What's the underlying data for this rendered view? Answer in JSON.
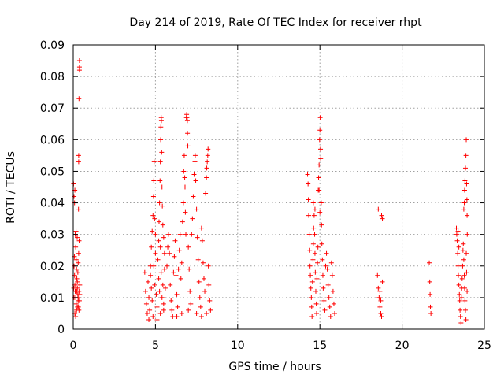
{
  "chart_data": {
    "type": "scatter",
    "title": "Day 214 of 2019, Rate Of TEC Index for receiver rhpt",
    "xlabel": "GPS time / hours",
    "ylabel": "ROTI / TECUs",
    "xlim": [
      0,
      25
    ],
    "ylim": [
      0,
      0.09
    ],
    "grid": true,
    "marker": "+",
    "marker_color": "#ff0000",
    "x_ticks": [
      0,
      5,
      10,
      15,
      20,
      25
    ],
    "x_tick_labels": [
      "0",
      "5",
      "10",
      "15",
      "20",
      "25"
    ],
    "y_ticks": [
      0,
      0.01,
      0.02,
      0.03,
      0.04,
      0.05,
      0.06,
      0.07,
      0.08,
      0.09
    ],
    "y_tick_labels": [
      "0",
      "0.01",
      "0.02",
      "0.03",
      "0.04",
      "0.05",
      "0.06",
      "0.07",
      "0.08",
      "0.09"
    ],
    "series": [
      {
        "name": "ROTI",
        "points": [
          [
            0.02,
            0.046
          ],
          [
            0.05,
            0.042
          ],
          [
            0.08,
            0.04
          ],
          [
            0.1,
            0.044
          ],
          [
            0.12,
            0.03
          ],
          [
            0.15,
            0.026
          ],
          [
            0.18,
            0.022
          ],
          [
            0.2,
            0.019
          ],
          [
            0.22,
            0.016
          ],
          [
            0.25,
            0.013
          ],
          [
            0.28,
            0.011
          ],
          [
            0.3,
            0.009
          ],
          [
            0.32,
            0.007
          ],
          [
            0.35,
            0.006
          ],
          [
            0.05,
            0.02
          ],
          [
            0.08,
            0.017
          ],
          [
            0.1,
            0.014
          ],
          [
            0.12,
            0.012
          ],
          [
            0.15,
            0.01
          ],
          [
            0.18,
            0.008
          ],
          [
            0.22,
            0.012
          ],
          [
            0.25,
            0.015
          ],
          [
            0.28,
            0.018
          ],
          [
            0.3,
            0.021
          ],
          [
            0.33,
            0.024
          ],
          [
            0.36,
            0.028
          ],
          [
            0.38,
            0.082
          ],
          [
            0.38,
            0.085
          ],
          [
            0.38,
            0.083
          ],
          [
            0.35,
            0.073
          ],
          [
            0.33,
            0.055
          ],
          [
            0.33,
            0.053
          ],
          [
            0.32,
            0.038
          ],
          [
            0.1,
            0.005
          ],
          [
            0.15,
            0.004
          ],
          [
            0.2,
            0.006
          ],
          [
            0.25,
            0.007
          ],
          [
            0.3,
            0.01
          ],
          [
            0.35,
            0.012
          ],
          [
            0.38,
            0.009
          ],
          [
            0.4,
            0.014
          ],
          [
            0.4,
            0.011
          ],
          [
            0.05,
            0.01
          ],
          [
            0.03,
            0.013
          ],
          [
            0.07,
            0.023
          ],
          [
            0.17,
            0.031
          ],
          [
            0.24,
            0.029
          ],
          [
            4.35,
            0.018
          ],
          [
            4.4,
            0.012
          ],
          [
            4.45,
            0.008
          ],
          [
            4.5,
            0.005
          ],
          [
            4.55,
            0.015
          ],
          [
            4.6,
            0.01
          ],
          [
            4.65,
            0.006
          ],
          [
            4.7,
            0.017
          ],
          [
            4.75,
            0.013
          ],
          [
            4.8,
            0.009
          ],
          [
            4.85,
            0.004
          ],
          [
            4.9,
            0.02
          ],
          [
            4.95,
            0.014
          ],
          [
            5.0,
            0.024
          ],
          [
            5.05,
            0.011
          ],
          [
            5.1,
            0.007
          ],
          [
            5.15,
            0.022
          ],
          [
            5.2,
            0.016
          ],
          [
            5.25,
            0.012
          ],
          [
            5.3,
            0.026
          ],
          [
            5.35,
            0.018
          ],
          [
            5.4,
            0.01
          ],
          [
            5.45,
            0.014
          ],
          [
            5.5,
            0.008
          ],
          [
            5.55,
            0.019
          ],
          [
            5.6,
            0.013
          ],
          [
            4.7,
            0.02
          ],
          [
            4.75,
            0.026
          ],
          [
            4.8,
            0.031
          ],
          [
            4.85,
            0.036
          ],
          [
            4.88,
            0.042
          ],
          [
            4.9,
            0.047
          ],
          [
            4.92,
            0.053
          ],
          [
            4.95,
            0.035
          ],
          [
            5.0,
            0.03
          ],
          [
            5.2,
            0.028
          ],
          [
            5.22,
            0.034
          ],
          [
            5.25,
            0.04
          ],
          [
            5.28,
            0.047
          ],
          [
            5.3,
            0.053
          ],
          [
            5.32,
            0.06
          ],
          [
            5.33,
            0.064
          ],
          [
            5.35,
            0.067
          ],
          [
            5.36,
            0.066
          ],
          [
            5.38,
            0.056
          ],
          [
            5.4,
            0.045
          ],
          [
            5.42,
            0.039
          ],
          [
            5.45,
            0.033
          ],
          [
            5.5,
            0.029
          ],
          [
            5.55,
            0.024
          ],
          [
            5.1,
            0.003
          ],
          [
            5.3,
            0.005
          ],
          [
            5.5,
            0.006
          ],
          [
            4.6,
            0.003
          ],
          [
            5.7,
            0.02
          ],
          [
            5.75,
            0.026
          ],
          [
            5.8,
            0.03
          ],
          [
            5.85,
            0.024
          ],
          [
            5.9,
            0.014
          ],
          [
            5.95,
            0.009
          ],
          [
            6.0,
            0.006
          ],
          [
            6.05,
            0.004
          ],
          [
            6.1,
            0.018
          ],
          [
            6.15,
            0.023
          ],
          [
            6.2,
            0.028
          ],
          [
            6.25,
            0.017
          ],
          [
            6.3,
            0.011
          ],
          [
            6.35,
            0.007
          ],
          [
            6.4,
            0.019
          ],
          [
            6.45,
            0.025
          ],
          [
            6.5,
            0.03
          ],
          [
            6.55,
            0.016
          ],
          [
            6.6,
            0.021
          ],
          [
            6.65,
            0.034
          ],
          [
            6.7,
            0.04
          ],
          [
            6.72,
            0.05
          ],
          [
            6.75,
            0.055
          ],
          [
            6.78,
            0.048
          ],
          [
            6.8,
            0.045
          ],
          [
            6.82,
            0.037
          ],
          [
            6.85,
            0.03
          ],
          [
            6.88,
            0.067
          ],
          [
            6.9,
            0.068
          ],
          [
            6.92,
            0.067
          ],
          [
            6.94,
            0.066
          ],
          [
            6.95,
            0.062
          ],
          [
            6.97,
            0.058
          ],
          [
            7.0,
            0.026
          ],
          [
            7.05,
            0.019
          ],
          [
            7.1,
            0.012
          ],
          [
            7.15,
            0.008
          ],
          [
            7.2,
            0.03
          ],
          [
            7.25,
            0.035
          ],
          [
            7.3,
            0.042
          ],
          [
            7.35,
            0.049
          ],
          [
            7.4,
            0.053
          ],
          [
            7.42,
            0.055
          ],
          [
            7.45,
            0.047
          ],
          [
            7.5,
            0.038
          ],
          [
            7.55,
            0.029
          ],
          [
            7.6,
            0.022
          ],
          [
            7.65,
            0.015
          ],
          [
            7.7,
            0.01
          ],
          [
            7.75,
            0.007
          ],
          [
            7.8,
            0.032
          ],
          [
            7.85,
            0.028
          ],
          [
            7.9,
            0.021
          ],
          [
            7.95,
            0.016
          ],
          [
            8.0,
            0.012
          ],
          [
            8.05,
            0.043
          ],
          [
            8.1,
            0.048
          ],
          [
            8.12,
            0.051
          ],
          [
            8.15,
            0.053
          ],
          [
            8.18,
            0.055
          ],
          [
            8.2,
            0.057
          ],
          [
            8.22,
            0.02
          ],
          [
            8.25,
            0.014
          ],
          [
            8.3,
            0.009
          ],
          [
            8.35,
            0.006
          ],
          [
            6.3,
            0.004
          ],
          [
            6.6,
            0.005
          ],
          [
            7.0,
            0.006
          ],
          [
            7.5,
            0.005
          ],
          [
            7.8,
            0.004
          ],
          [
            8.1,
            0.005
          ],
          [
            14.25,
            0.049
          ],
          [
            14.28,
            0.046
          ],
          [
            14.3,
            0.041
          ],
          [
            14.32,
            0.036
          ],
          [
            14.35,
            0.03
          ],
          [
            14.38,
            0.025
          ],
          [
            14.4,
            0.02
          ],
          [
            14.42,
            0.017
          ],
          [
            14.45,
            0.013
          ],
          [
            14.48,
            0.01
          ],
          [
            14.5,
            0.007
          ],
          [
            14.52,
            0.004
          ],
          [
            14.55,
            0.015
          ],
          [
            14.58,
            0.022
          ],
          [
            14.6,
            0.027
          ],
          [
            14.62,
            0.032
          ],
          [
            14.65,
            0.036
          ],
          [
            14.68,
            0.03
          ],
          [
            14.7,
            0.024
          ],
          [
            14.72,
            0.018
          ],
          [
            14.75,
            0.012
          ],
          [
            14.78,
            0.008
          ],
          [
            14.8,
            0.005
          ],
          [
            14.82,
            0.016
          ],
          [
            14.85,
            0.021
          ],
          [
            14.88,
            0.026
          ],
          [
            14.9,
            0.044
          ],
          [
            14.92,
            0.048
          ],
          [
            14.95,
            0.052
          ],
          [
            14.98,
            0.06
          ],
          [
            15.0,
            0.063
          ],
          [
            15.02,
            0.067
          ],
          [
            15.04,
            0.057
          ],
          [
            15.05,
            0.054
          ],
          [
            15.08,
            0.04
          ],
          [
            15.1,
            0.033
          ],
          [
            15.12,
            0.027
          ],
          [
            15.15,
            0.022
          ],
          [
            15.18,
            0.017
          ],
          [
            15.2,
            0.013
          ],
          [
            15.25,
            0.009
          ],
          [
            15.3,
            0.006
          ],
          [
            15.35,
            0.02
          ],
          [
            15.4,
            0.024
          ],
          [
            15.45,
            0.019
          ],
          [
            15.5,
            0.014
          ],
          [
            15.55,
            0.01
          ],
          [
            15.6,
            0.007
          ],
          [
            15.65,
            0.004
          ],
          [
            15.7,
            0.021
          ],
          [
            15.75,
            0.017
          ],
          [
            15.8,
            0.012
          ],
          [
            15.85,
            0.008
          ],
          [
            15.9,
            0.005
          ],
          [
            14.6,
            0.04
          ],
          [
            14.7,
            0.038
          ],
          [
            15.0,
            0.037
          ],
          [
            14.95,
            0.044
          ],
          [
            18.5,
            0.017
          ],
          [
            18.55,
            0.013
          ],
          [
            18.6,
            0.01
          ],
          [
            18.65,
            0.007
          ],
          [
            18.7,
            0.005
          ],
          [
            18.75,
            0.004
          ],
          [
            18.8,
            0.015
          ],
          [
            18.55,
            0.038
          ],
          [
            18.75,
            0.036
          ],
          [
            18.8,
            0.035
          ],
          [
            18.65,
            0.012
          ],
          [
            18.7,
            0.009
          ],
          [
            21.65,
            0.021
          ],
          [
            21.68,
            0.015
          ],
          [
            21.7,
            0.011
          ],
          [
            21.72,
            0.007
          ],
          [
            21.75,
            0.005
          ],
          [
            23.3,
            0.032
          ],
          [
            23.32,
            0.03
          ],
          [
            23.35,
            0.028
          ],
          [
            23.38,
            0.024
          ],
          [
            23.4,
            0.02
          ],
          [
            23.42,
            0.017
          ],
          [
            23.45,
            0.014
          ],
          [
            23.48,
            0.011
          ],
          [
            23.5,
            0.009
          ],
          [
            23.52,
            0.006
          ],
          [
            23.55,
            0.004
          ],
          [
            23.58,
            0.002
          ],
          [
            23.6,
            0.01
          ],
          [
            23.62,
            0.013
          ],
          [
            23.65,
            0.016
          ],
          [
            23.68,
            0.02
          ],
          [
            23.7,
            0.025
          ],
          [
            23.72,
            0.027
          ],
          [
            23.75,
            0.022
          ],
          [
            23.78,
            0.017
          ],
          [
            23.8,
            0.013
          ],
          [
            23.82,
            0.009
          ],
          [
            23.85,
            0.006
          ],
          [
            23.88,
            0.003
          ],
          [
            23.75,
            0.038
          ],
          [
            23.78,
            0.04
          ],
          [
            23.8,
            0.044
          ],
          [
            23.82,
            0.047
          ],
          [
            23.85,
            0.051
          ],
          [
            23.88,
            0.055
          ],
          [
            23.9,
            0.06
          ],
          [
            23.92,
            0.046
          ],
          [
            23.94,
            0.041
          ],
          [
            23.95,
            0.036
          ],
          [
            23.96,
            0.03
          ],
          [
            23.4,
            0.031
          ],
          [
            23.45,
            0.026
          ],
          [
            23.9,
            0.024
          ],
          [
            23.92,
            0.018
          ],
          [
            23.95,
            0.012
          ]
        ]
      }
    ]
  }
}
